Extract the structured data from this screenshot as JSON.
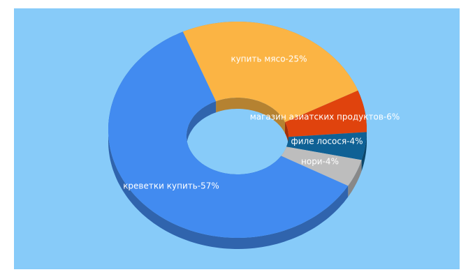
{
  "chart_data": {
    "type": "donut3d",
    "categories": [
      "купить мясо-25%",
      "магазин азиатских продуктов-6%",
      "филе лосося-4%",
      "нори-4%",
      "креветки купить-57%"
    ],
    "values": [
      25,
      6,
      4,
      4,
      57
    ],
    "colors": [
      "#fbb444",
      "#e0430d",
      "#0f6195",
      "#bdbdbd",
      "#428bf0"
    ]
  }
}
